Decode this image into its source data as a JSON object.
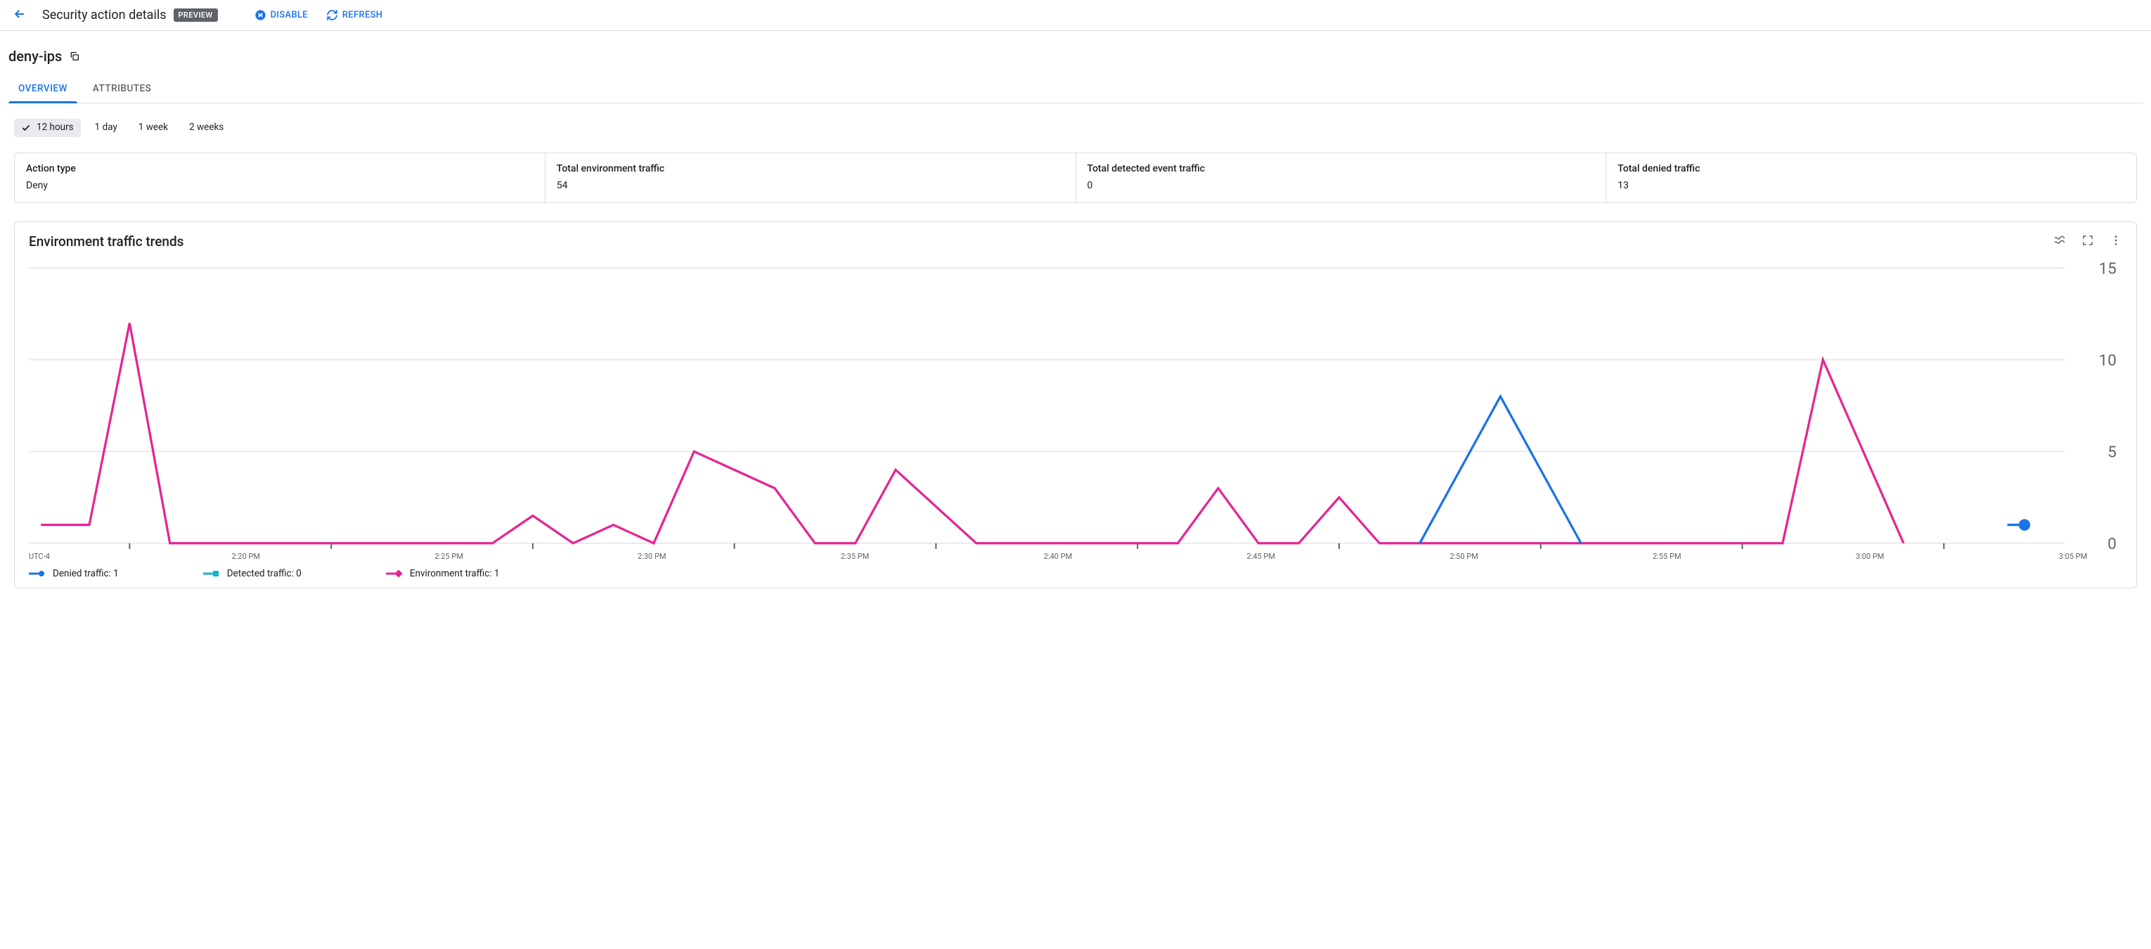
{
  "colors": {
    "blue": "#1a73e8",
    "pink": "#e52592",
    "teal": "#12b5cb",
    "grid": "#e8eaed",
    "axis_text": "#5f6368"
  },
  "header": {
    "title": "Security action details",
    "badge": "PREVIEW",
    "disable": "DISABLE",
    "refresh": "REFRESH"
  },
  "rule_name": "deny-ips",
  "tabs": {
    "overview": "OVERVIEW",
    "attributes": "ATTRIBUTES"
  },
  "ranges": {
    "h12": "12 hours",
    "d1": "1 day",
    "w1": "1 week",
    "w2": "2 weeks",
    "selected": "h12"
  },
  "summary": {
    "action_type": {
      "label": "Action type",
      "value": "Deny"
    },
    "env_traffic": {
      "label": "Total environment traffic",
      "value": "54"
    },
    "detected": {
      "label": "Total detected event traffic",
      "value": "0"
    },
    "denied": {
      "label": "Total denied traffic",
      "value": "13"
    }
  },
  "chart": {
    "title": "Environment traffic trends",
    "type": "line",
    "timezone": "UTC-4",
    "x_ticks": [
      "2:20 PM",
      "2:25 PM",
      "2:30 PM",
      "2:35 PM",
      "2:40 PM",
      "2:45 PM",
      "2:50 PM",
      "2:55 PM",
      "3:00 PM",
      "3:05 PM"
    ],
    "y_ticks": [
      0,
      5,
      10,
      15
    ],
    "ylim": [
      0,
      15
    ],
    "xlim_minutes": [
      137.5,
      188
    ],
    "gridlines": "horizontal",
    "background": "#ffffff",
    "line_width": 1.6,
    "series": {
      "denied": {
        "label": "Denied traffic",
        "legend_value": "1",
        "color": "#1a73e8",
        "marker": "circle",
        "points": [
          [
            172,
            0
          ],
          [
            174,
            8
          ],
          [
            176,
            0
          ]
        ],
        "end_marker": [
          187,
          1
        ]
      },
      "detected": {
        "label": "Detected traffic",
        "legend_value": "0",
        "color": "#12b5cb",
        "marker": "square",
        "points": []
      },
      "environment": {
        "label": "Environment traffic",
        "legend_value": "1",
        "color": "#e52592",
        "marker": "diamond",
        "points": [
          [
            137.8,
            1
          ],
          [
            139,
            1
          ],
          [
            140,
            12
          ],
          [
            141,
            0
          ],
          [
            149,
            0
          ],
          [
            150,
            1.5
          ],
          [
            151,
            0
          ],
          [
            152,
            1
          ],
          [
            153,
            0
          ],
          [
            154,
            5
          ],
          [
            156,
            3
          ],
          [
            157,
            0
          ],
          [
            158,
            0
          ],
          [
            159,
            4
          ],
          [
            161,
            0
          ],
          [
            166,
            0
          ],
          [
            167,
            3
          ],
          [
            168,
            0
          ],
          [
            169,
            0
          ],
          [
            170,
            2.5
          ],
          [
            171,
            0
          ],
          [
            172,
            0
          ],
          [
            181,
            0
          ],
          [
            182,
            10
          ],
          [
            184,
            0
          ]
        ]
      }
    }
  }
}
